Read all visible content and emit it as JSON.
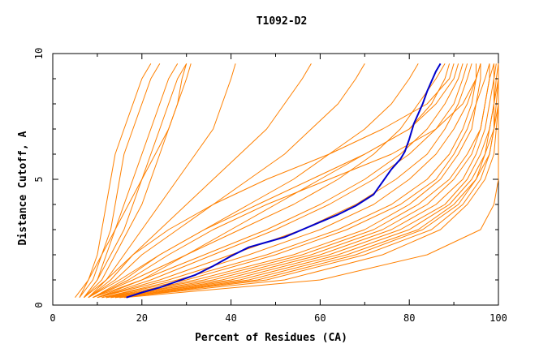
{
  "chart_data": {
    "type": "line",
    "title": "T1092-D2",
    "xlabel": "Percent of Residues (CA)",
    "ylabel": "Distance Cutoff, A",
    "xlim": [
      0,
      100
    ],
    "ylim": [
      0,
      10
    ],
    "x_ticks": [
      0,
      20,
      40,
      60,
      80,
      100
    ],
    "y_ticks": [
      0,
      5,
      10
    ],
    "grid": false,
    "legend": "none",
    "colors": {
      "highlight": "#0000cc",
      "others": "#ff8000"
    },
    "highlight_series": {
      "x": [
        16.5,
        20,
        24,
        28,
        32,
        36,
        40,
        44,
        48,
        52,
        56,
        60,
        64,
        68,
        72,
        74,
        76,
        78,
        79,
        80,
        81,
        82,
        83,
        84,
        85,
        86,
        87
      ],
      "y": [
        0.3,
        0.5,
        0.7,
        0.95,
        1.2,
        1.55,
        1.95,
        2.3,
        2.5,
        2.7,
        3.0,
        3.3,
        3.6,
        3.95,
        4.4,
        4.9,
        5.4,
        5.8,
        6.1,
        6.6,
        7.2,
        7.6,
        8.0,
        8.5,
        8.9,
        9.3,
        9.6
      ]
    },
    "model_series": [
      {
        "x": [
          6,
          8,
          10,
          11,
          12,
          13,
          14,
          16,
          18,
          20,
          22
        ],
        "y": [
          0.3,
          1,
          2,
          3,
          4,
          5,
          6,
          7,
          8,
          9,
          9.6
        ]
      },
      {
        "x": [
          6,
          9,
          11,
          13,
          14,
          15,
          16,
          18,
          20,
          22,
          24
        ],
        "y": [
          0.3,
          1,
          2,
          3,
          4,
          5,
          6,
          7,
          8,
          9,
          9.6
        ]
      },
      {
        "x": [
          7,
          10,
          12,
          14,
          16,
          18,
          20,
          22,
          24,
          26,
          28
        ],
        "y": [
          0.3,
          1,
          2,
          3,
          4,
          5,
          6,
          7,
          8,
          9,
          9.6
        ]
      },
      {
        "x": [
          7,
          10,
          13,
          16,
          18,
          20,
          22,
          24,
          26,
          28,
          30
        ],
        "y": [
          0.3,
          1,
          2,
          3,
          4,
          5,
          6,
          7,
          8,
          9,
          9.6
        ]
      },
      {
        "x": [
          7,
          11,
          14,
          17,
          20,
          22,
          24,
          26,
          28,
          30,
          31
        ],
        "y": [
          0.3,
          1,
          2,
          3,
          4,
          5,
          6,
          7,
          8,
          9,
          9.6
        ]
      },
      {
        "x": [
          8,
          12,
          16,
          20,
          24,
          28,
          32,
          36,
          38,
          40,
          41
        ],
        "y": [
          0.3,
          1,
          2,
          3,
          4,
          5,
          6,
          7,
          8,
          9,
          9.6
        ]
      },
      {
        "x": [
          8,
          13,
          18,
          24,
          30,
          36,
          42,
          48,
          52,
          56,
          58
        ],
        "y": [
          0.3,
          1,
          2,
          3,
          4,
          5,
          6,
          7,
          8,
          9,
          9.6
        ]
      },
      {
        "x": [
          8,
          14,
          20,
          28,
          36,
          44,
          52,
          58,
          64,
          68,
          70
        ],
        "y": [
          0.3,
          1,
          2,
          3,
          4,
          5,
          6,
          7,
          8,
          9,
          9.6
        ]
      },
      {
        "x": [
          9,
          16,
          24,
          34,
          44,
          54,
          62,
          70,
          76,
          80,
          82
        ],
        "y": [
          0.3,
          1,
          2,
          3,
          4,
          5,
          6,
          7,
          8,
          9,
          9.6
        ]
      },
      {
        "x": [
          9,
          18,
          30,
          42,
          54,
          64,
          72,
          78,
          82,
          86,
          88
        ],
        "y": [
          0.3,
          1,
          2,
          3,
          4,
          5,
          6,
          7,
          8,
          9,
          9.6
        ]
      },
      {
        "x": [
          10,
          22,
          36,
          50,
          62,
          72,
          80,
          86,
          90,
          92,
          93
        ],
        "y": [
          0.3,
          1,
          2,
          3,
          4,
          5,
          6,
          7,
          8,
          9,
          9.6
        ]
      },
      {
        "x": [
          10,
          26,
          44,
          60,
          72,
          80,
          86,
          90,
          93,
          95,
          96
        ],
        "y": [
          0.3,
          1,
          2,
          3,
          4,
          5,
          6,
          7,
          8,
          9,
          9.6
        ]
      },
      {
        "x": [
          11,
          30,
          50,
          66,
          78,
          86,
          90,
          93,
          95,
          97,
          98
        ],
        "y": [
          0.3,
          1,
          2,
          3,
          4,
          5,
          6,
          7,
          8,
          9,
          9.6
        ]
      },
      {
        "x": [
          11,
          34,
          56,
          72,
          82,
          89,
          93,
          96,
          97,
          98,
          99
        ],
        "y": [
          0.3,
          1,
          2,
          3,
          4,
          5,
          6,
          7,
          8,
          9,
          9.6
        ]
      },
      {
        "x": [
          12,
          38,
          60,
          76,
          86,
          92,
          95,
          97,
          98,
          99,
          99.5
        ],
        "y": [
          0.3,
          1,
          2,
          3,
          4,
          5,
          6,
          7,
          8,
          9,
          9.6
        ]
      },
      {
        "x": [
          13,
          42,
          64,
          80,
          89,
          94,
          97,
          98,
          99,
          99.5,
          100
        ],
        "y": [
          0.3,
          1,
          2,
          3,
          4,
          5,
          6,
          7,
          8,
          9,
          9.6
        ]
      },
      {
        "x": [
          14,
          46,
          68,
          83,
          91,
          95,
          98,
          99,
          99.5,
          100,
          100
        ],
        "y": [
          0.3,
          1,
          2,
          3,
          4,
          5,
          6,
          7,
          8,
          9,
          9.6
        ]
      },
      {
        "x": [
          15,
          52,
          74,
          87,
          93,
          97,
          99,
          99.5,
          100,
          100,
          100
        ],
        "y": [
          0.3,
          1,
          2,
          3,
          4,
          5,
          6,
          7,
          8,
          9,
          9.6
        ]
      },
      {
        "x": [
          16,
          60,
          84,
          96,
          99,
          100,
          100,
          100,
          100,
          100,
          100
        ],
        "y": [
          0.3,
          1,
          2,
          3,
          4,
          5,
          6,
          7,
          8,
          9,
          9.6
        ]
      },
      {
        "x": [
          9,
          20,
          34,
          48,
          60,
          70,
          78,
          84,
          88,
          91,
          92
        ],
        "y": [
          0.3,
          1,
          2,
          3,
          4,
          5,
          6,
          7,
          8,
          9,
          9.6
        ]
      },
      {
        "x": [
          10,
          24,
          40,
          56,
          68,
          77,
          84,
          88,
          91,
          93,
          94
        ],
        "y": [
          0.3,
          1,
          2,
          3,
          4,
          5,
          6,
          7,
          8,
          9,
          9.6
        ]
      },
      {
        "x": [
          12,
          36,
          58,
          74,
          84,
          90,
          94,
          96,
          97,
          98,
          98
        ],
        "y": [
          0.3,
          1,
          2,
          3,
          4,
          5,
          6,
          7,
          8,
          9,
          9.6
        ]
      },
      {
        "x": [
          13,
          40,
          62,
          78,
          88,
          93,
          96,
          98,
          99,
          99,
          99
        ],
        "y": [
          0.3,
          1,
          2,
          3,
          4,
          5,
          6,
          7,
          8,
          9,
          9.6
        ]
      },
      {
        "x": [
          14,
          44,
          66,
          82,
          90,
          95,
          97,
          99,
          99,
          100,
          100
        ],
        "y": [
          0.3,
          1,
          2,
          3,
          4,
          5,
          6,
          7,
          8,
          9,
          9.6
        ]
      },
      {
        "x": [
          8,
          15,
          24,
          34,
          46,
          58,
          70,
          80,
          86,
          90,
          91
        ],
        "y": [
          0.3,
          1,
          2,
          3,
          4,
          5,
          6,
          7,
          8,
          9,
          9.6
        ]
      },
      {
        "x": [
          7,
          12,
          18,
          26,
          36,
          48,
          62,
          74,
          84,
          89,
          90
        ],
        "y": [
          0.3,
          1,
          2,
          3,
          4,
          5,
          6,
          7,
          8,
          9,
          9.6
        ]
      },
      {
        "x": [
          12,
          32,
          54,
          70,
          80,
          87,
          91,
          94,
          95,
          96,
          96
        ],
        "y": [
          0.3,
          1,
          2,
          3,
          4,
          5,
          6,
          7,
          8,
          9,
          9.6
        ]
      },
      {
        "x": [
          15,
          48,
          70,
          85,
          92,
          96,
          98,
          99,
          100,
          100,
          100
        ],
        "y": [
          0.3,
          1,
          2,
          3,
          4,
          5,
          6,
          7,
          8,
          9,
          9.6
        ]
      },
      {
        "x": [
          11,
          28,
          48,
          64,
          76,
          84,
          89,
          92,
          94,
          95,
          95
        ],
        "y": [
          0.3,
          1,
          2,
          3,
          4,
          5,
          6,
          7,
          8,
          9,
          9.6
        ]
      },
      {
        "x": [
          5,
          8,
          11,
          14,
          17,
          20,
          23,
          26,
          28,
          29,
          30
        ],
        "y": [
          0.3,
          1,
          2,
          3,
          4,
          5,
          6,
          7,
          8,
          9,
          9.6
        ]
      },
      {
        "x": [
          10,
          20,
          30,
          40,
          50,
          60,
          70,
          80,
          85,
          88,
          89
        ],
        "y": [
          0.3,
          1,
          2,
          3,
          4,
          5,
          6,
          7,
          8,
          9,
          9.6
        ]
      },
      {
        "x": [
          9,
          17,
          26,
          36,
          48,
          62,
          76,
          86,
          92,
          95,
          96
        ],
        "y": [
          0.3,
          1,
          2,
          3,
          4,
          5,
          6,
          7,
          8,
          9,
          9.6
        ]
      }
    ]
  }
}
